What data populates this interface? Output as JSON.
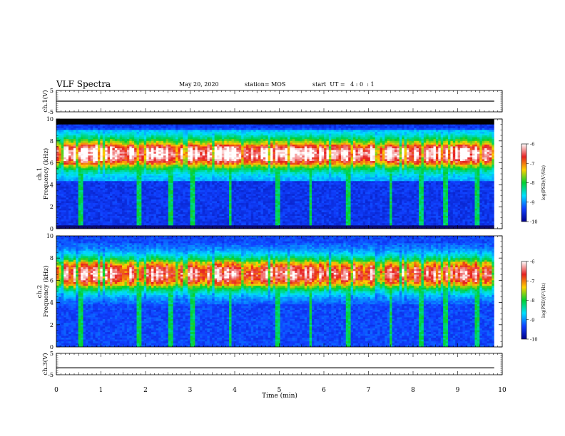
{
  "header": {
    "title": "VLF Spectra",
    "date": "May 20, 2020",
    "station": "station= MOS",
    "start_ut": "start  UT =   4 : 0  : 1"
  },
  "chart_data": [
    {
      "type": "line",
      "panel": "ch1-waveform",
      "ylabel": "ch.1(V)",
      "ylim": [
        -5,
        5
      ],
      "yticks": [
        "5",
        "-5"
      ],
      "x": [
        0,
        9.82
      ],
      "series": [
        {
          "values": [
            0,
            0
          ]
        }
      ],
      "color": "#000000"
    },
    {
      "type": "heatmap",
      "panel": "ch1-spectrogram",
      "ylabel_line1": "ch.1",
      "ylabel_line2": "Frequency  (kHz)",
      "ylim": [
        0,
        10
      ],
      "yticks": [
        "0",
        "2",
        "4",
        "6",
        "8",
        "10"
      ],
      "xlim": [
        0,
        10
      ],
      "data_end_min": 9.82,
      "noise_floor_freq_khz": [
        4.3,
        9.0
      ],
      "emission_band_khz": [
        5.3,
        8.3
      ],
      "blank_band_khz": [
        9.5,
        10
      ],
      "bottom_floor_color": "#0a0a70",
      "colorbar": {
        "label": "log(PSD)(V²/Hz)",
        "range": [
          -10,
          -6
        ],
        "ticks": [
          "-6",
          "-7",
          "-8",
          "-9",
          "-10"
        ],
        "colors": [
          "#ffffff",
          "#e62020",
          "#ffd000",
          "#00d030",
          "#00e0ff",
          "#1040ff",
          "#00008a"
        ]
      }
    },
    {
      "type": "heatmap",
      "panel": "ch2-spectrogram",
      "ylabel_line1": "ch.2",
      "ylabel_line2": "Frequency  (kHz)",
      "ylim": [
        0,
        10
      ],
      "yticks": [
        "0",
        "2",
        "4",
        "6",
        "8",
        "10"
      ],
      "xlim": [
        0,
        10
      ],
      "data_end_min": 9.82,
      "emission_band_khz": [
        4.8,
        8.3
      ],
      "colorbar": {
        "label": "log(PSD)(V²/Hz)",
        "range": [
          -10,
          -6
        ],
        "ticks": [
          "-6",
          "-7",
          "-8",
          "-9",
          "-10"
        ],
        "colors": [
          "#ffffff",
          "#e62020",
          "#ffd000",
          "#00d030",
          "#00e0ff",
          "#1040ff",
          "#00008a"
        ]
      }
    },
    {
      "type": "line",
      "panel": "ch3-waveform",
      "ylabel": "ch.3(V)",
      "ylim": [
        -5,
        5
      ],
      "yticks": [
        "5",
        "-5"
      ],
      "x": [
        0,
        9.82
      ],
      "series": [
        {
          "values": [
            -1.8,
            -1.8
          ]
        }
      ],
      "xlabel": "Time  (min)",
      "xlim": [
        0,
        10
      ],
      "xticks": [
        "0",
        "1",
        "2",
        "3",
        "4",
        "5",
        "6",
        "7",
        "8",
        "9",
        "10"
      ],
      "color": "#000000"
    }
  ]
}
